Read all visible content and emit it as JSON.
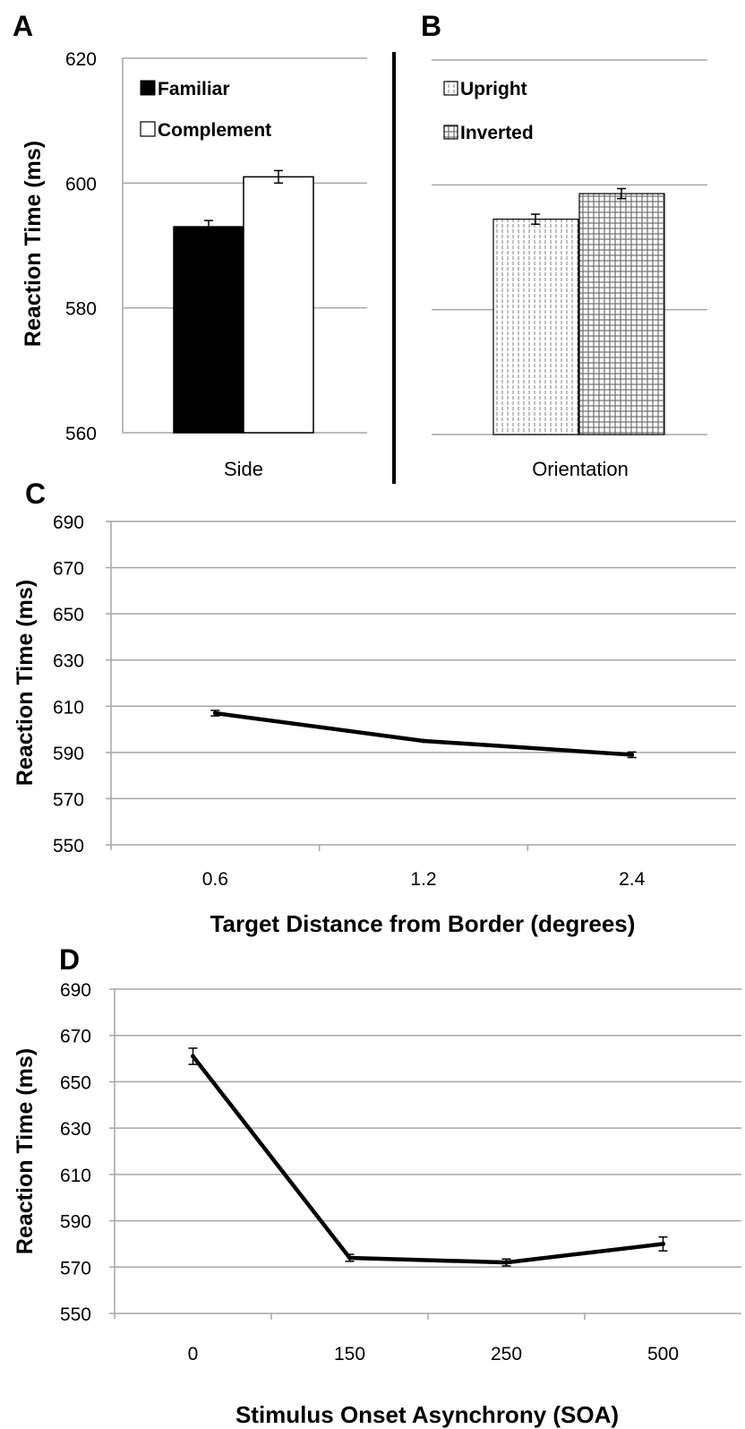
{
  "panel_letters": {
    "a": "A",
    "b": "B",
    "c": "C",
    "d": "D"
  },
  "colors": {
    "familiar": "#000000",
    "complement": "#ffffff",
    "grid": "#a6a6a6",
    "line": "#000000"
  },
  "chart_data": [
    {
      "id": "A",
      "type": "bar",
      "category_label": "Side",
      "ylabel": "Reaction Time (ms)",
      "ylim": [
        560,
        620
      ],
      "yticks": [
        560,
        580,
        600,
        620
      ],
      "grid": true,
      "legend_position": "top-left",
      "series": [
        {
          "name": "Familiar",
          "value": 593,
          "error": 1.0,
          "fill": "solid-black"
        },
        {
          "name": "Complement",
          "value": 601,
          "error": 1.0,
          "fill": "white"
        }
      ]
    },
    {
      "id": "B",
      "type": "bar",
      "category_label": "Orientation",
      "ylim": [
        560,
        620
      ],
      "yticks": [
        560,
        580,
        600,
        620
      ],
      "grid": true,
      "legend_position": "top-left",
      "series": [
        {
          "name": "Upright",
          "value": 594.5,
          "error": 0.8,
          "fill": "dotted-vertical-hatch"
        },
        {
          "name": "Inverted",
          "value": 598.6,
          "error": 0.8,
          "fill": "crosshatch"
        }
      ]
    },
    {
      "id": "C",
      "type": "line",
      "ylabel": "Reaction Time (ms)",
      "xlabel": "Target Distance from Border (degrees)",
      "categories": [
        "0.6",
        "1.2",
        "2.4"
      ],
      "values": [
        607,
        595,
        589
      ],
      "errors": [
        1.2,
        0,
        1.2
      ],
      "ylim": [
        550,
        690
      ],
      "yticks": [
        550,
        570,
        590,
        610,
        630,
        650,
        670,
        690
      ],
      "grid": true
    },
    {
      "id": "D",
      "type": "line",
      "ylabel": "Reaction Time (ms)",
      "xlabel": "Stimulus Onset Asynchrony (SOA)",
      "categories": [
        "0",
        "150",
        "250",
        "500"
      ],
      "values": [
        661,
        574,
        572,
        580
      ],
      "errors": [
        3.5,
        1.5,
        1.5,
        3.0
      ],
      "ylim": [
        550,
        690
      ],
      "yticks": [
        550,
        570,
        590,
        610,
        630,
        650,
        670,
        690
      ],
      "grid": true
    }
  ]
}
